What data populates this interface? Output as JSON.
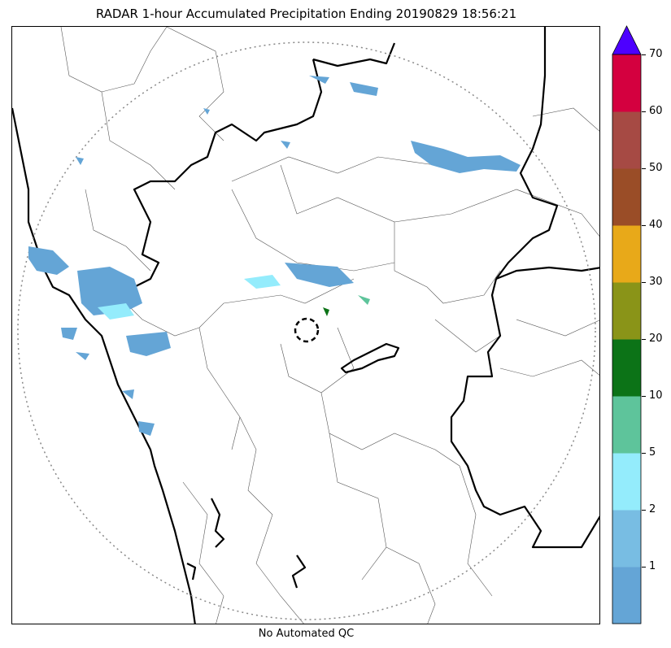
{
  "title": "RADAR 1-hour Accumulated Precipitation Ending 20190829 18:56:21",
  "footer_label": "No Automated QC",
  "colorbar": {
    "ticks": [
      "1",
      "2",
      "5",
      "10",
      "20",
      "30",
      "40",
      "50",
      "60",
      "70"
    ],
    "bins": [
      {
        "range": "0-1",
        "color": "#64a5d6"
      },
      {
        "range": "1-2",
        "color": "#78bde3"
      },
      {
        "range": "2-5",
        "color": "#94ecfc"
      },
      {
        "range": "5-10",
        "color": "#5ec49b"
      },
      {
        "range": "10-20",
        "color": "#0c7317"
      },
      {
        "range": "20-30",
        "color": "#8a9418"
      },
      {
        "range": "30-40",
        "color": "#e8a919"
      },
      {
        "range": "40-50",
        "color": "#9a4d27"
      },
      {
        "range": "50-60",
        "color": "#a64a44"
      },
      {
        "range": "60-70",
        "color": "#d4003f"
      }
    ],
    "overflow_color": "#4d00ff",
    "extend": "max"
  },
  "map": {
    "radar_range_ring": "dotted gray",
    "radar_site_marker": "dashed black circle",
    "boundaries": [
      "state borders (thick black)",
      "district borders (thin gray)",
      "coastline (thick black)"
    ]
  }
}
